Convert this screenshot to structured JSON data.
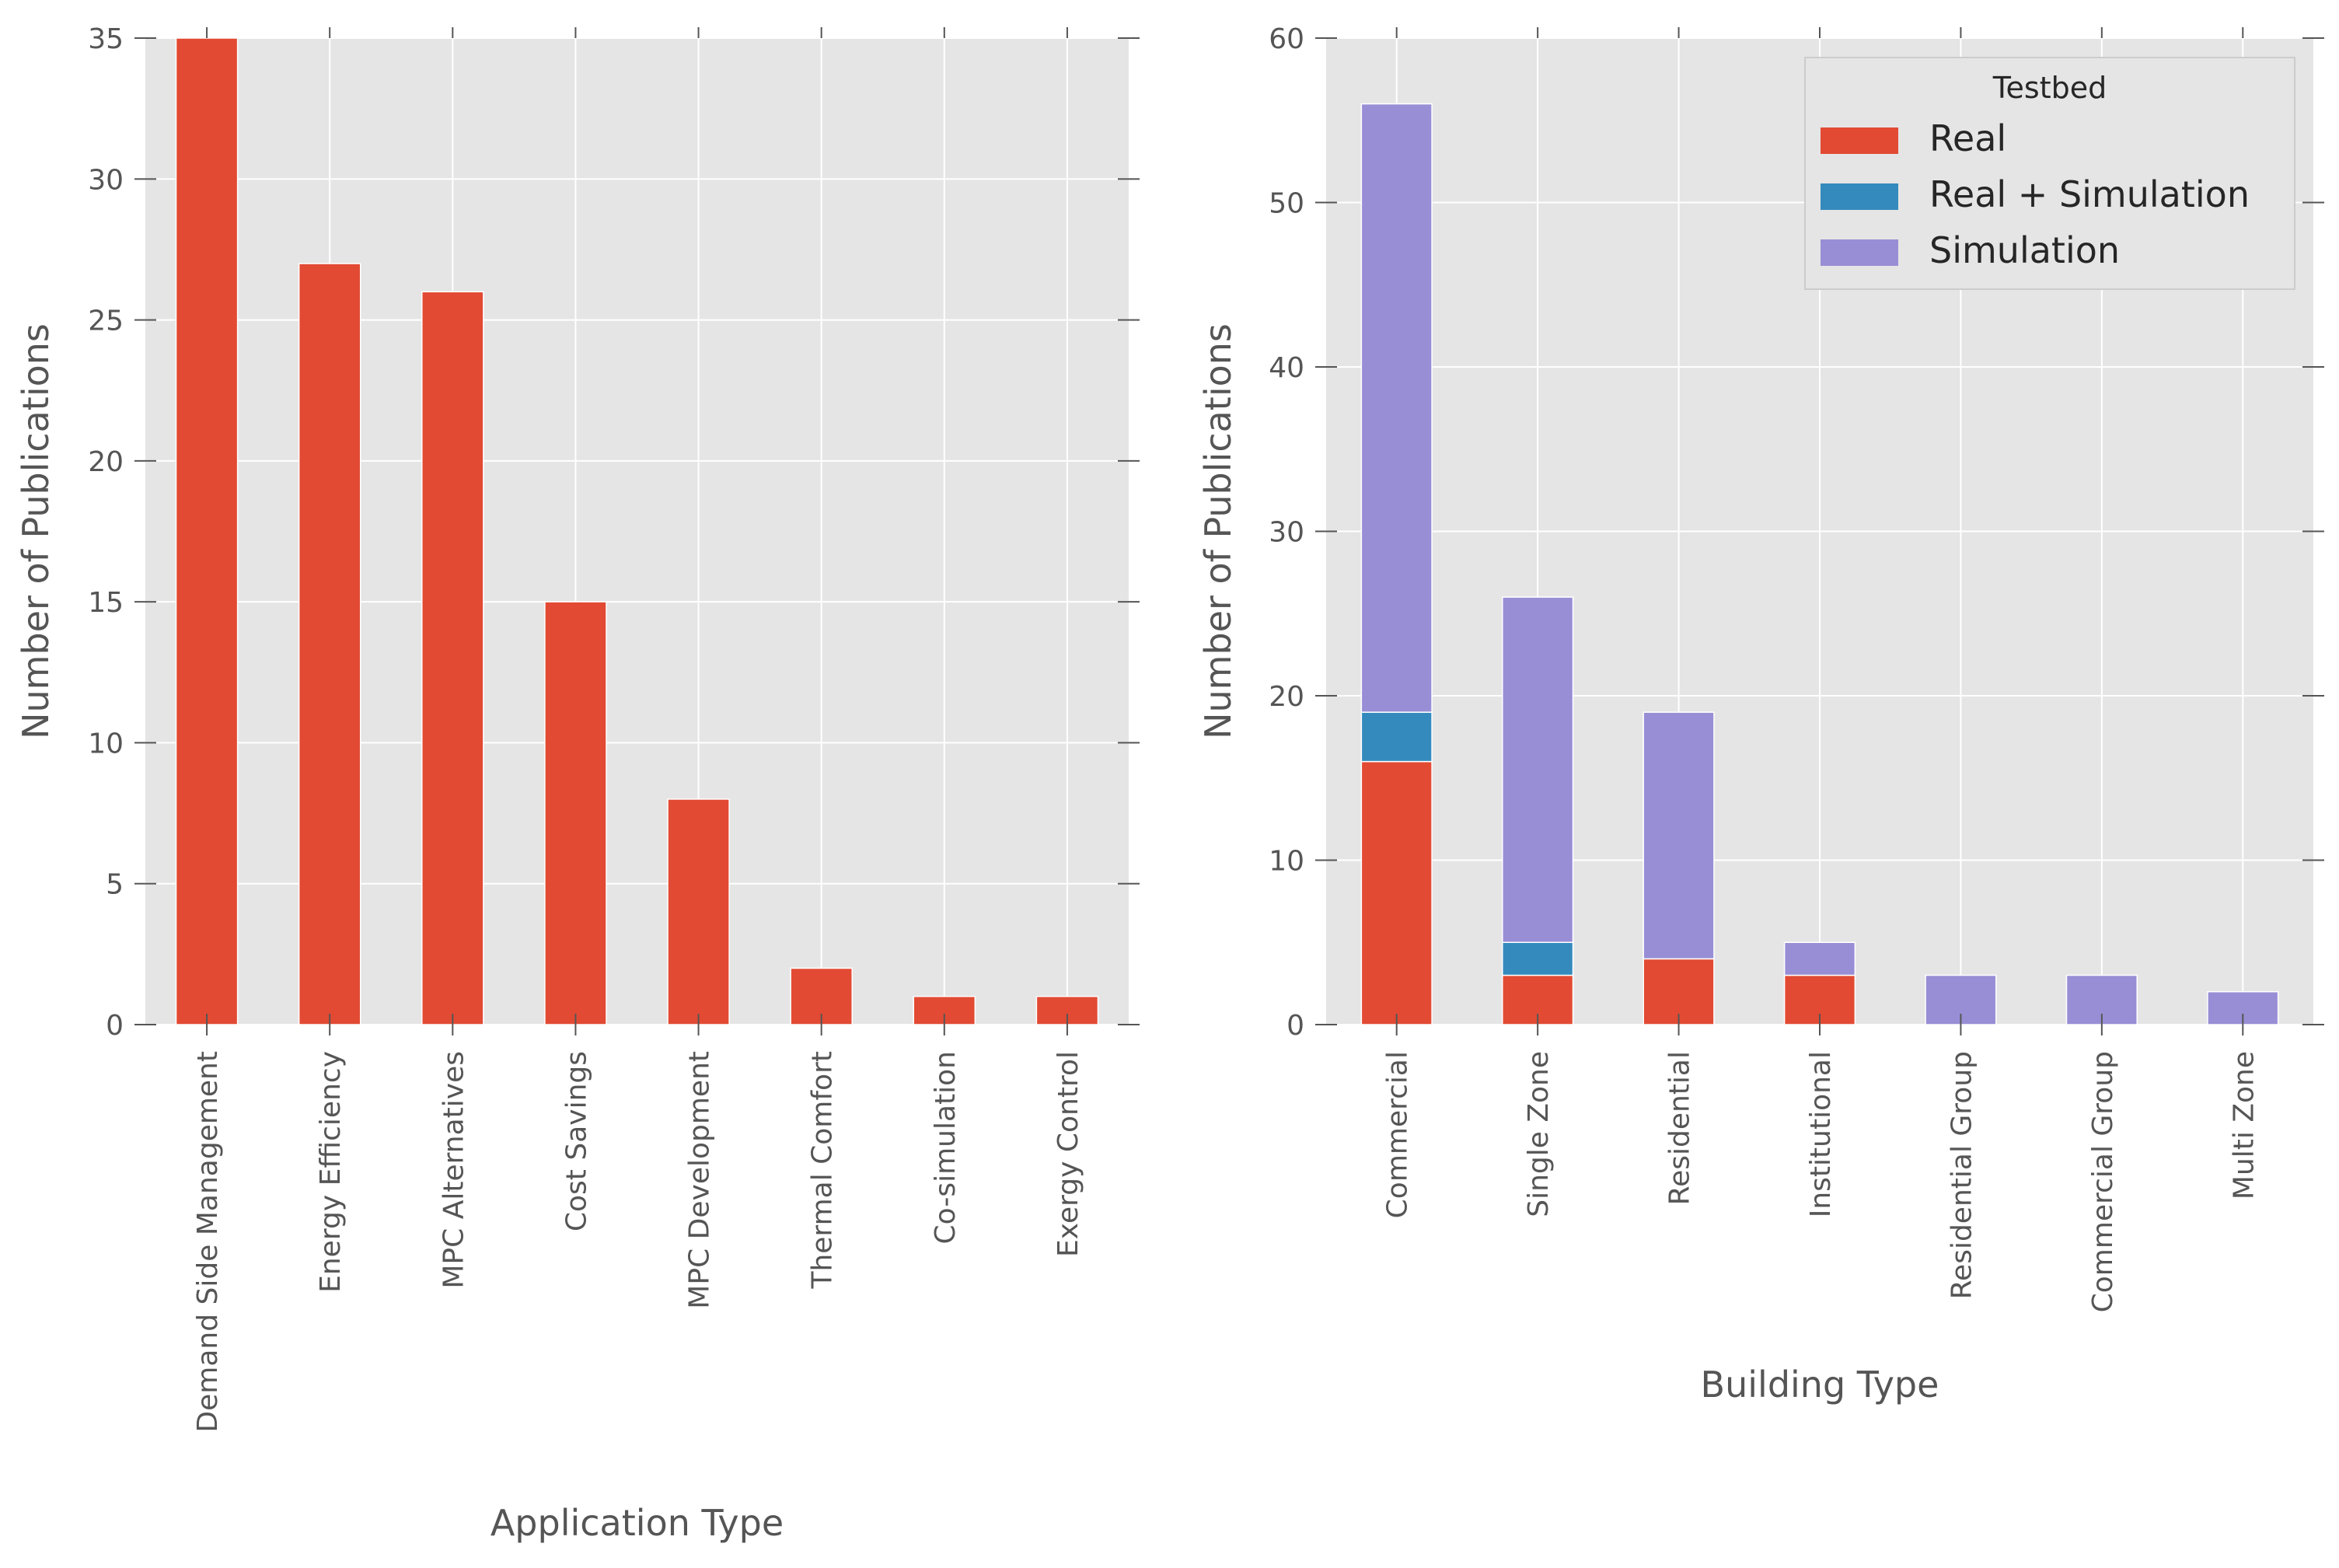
{
  "chart_data": [
    {
      "type": "bar",
      "title": "",
      "xlabel": "Application Type",
      "ylabel": "Number of Publications",
      "ylim": [
        0,
        35
      ],
      "yticks": [
        0,
        5,
        10,
        15,
        20,
        25,
        30,
        35
      ],
      "grid": true,
      "categories": [
        "Demand Side Management",
        "Energy Efficiency",
        "MPC Alternatives",
        "Cost Savings",
        "MPC Development",
        "Thermal Comfort",
        "Co-simulation",
        "Exergy Control"
      ],
      "values": [
        35,
        27,
        26,
        15,
        8,
        2,
        1,
        1
      ],
      "color": "#E24A33"
    },
    {
      "type": "bar",
      "stacked": true,
      "title": "",
      "xlabel": "Building Type",
      "ylabel": "Number of Publications",
      "ylim": [
        0,
        60
      ],
      "yticks": [
        0,
        10,
        20,
        30,
        40,
        50,
        60
      ],
      "grid": true,
      "legend_title": "Testbed",
      "legend_position": "top-right",
      "categories": [
        "Commercial",
        "Single Zone",
        "Residential",
        "Institutional",
        "Residential Group",
        "Commercial Group",
        "Multi Zone"
      ],
      "series": [
        {
          "name": "Real",
          "color": "#E24A33",
          "values": [
            16,
            3,
            4,
            3,
            0,
            0,
            0
          ]
        },
        {
          "name": "Real + Simulation",
          "color": "#348ABD",
          "values": [
            3,
            2,
            0,
            0,
            0,
            0,
            0
          ]
        },
        {
          "name": "Simulation",
          "color": "#988ED5",
          "values": [
            37,
            21,
            15,
            2,
            3,
            3,
            2
          ]
        }
      ]
    }
  ]
}
